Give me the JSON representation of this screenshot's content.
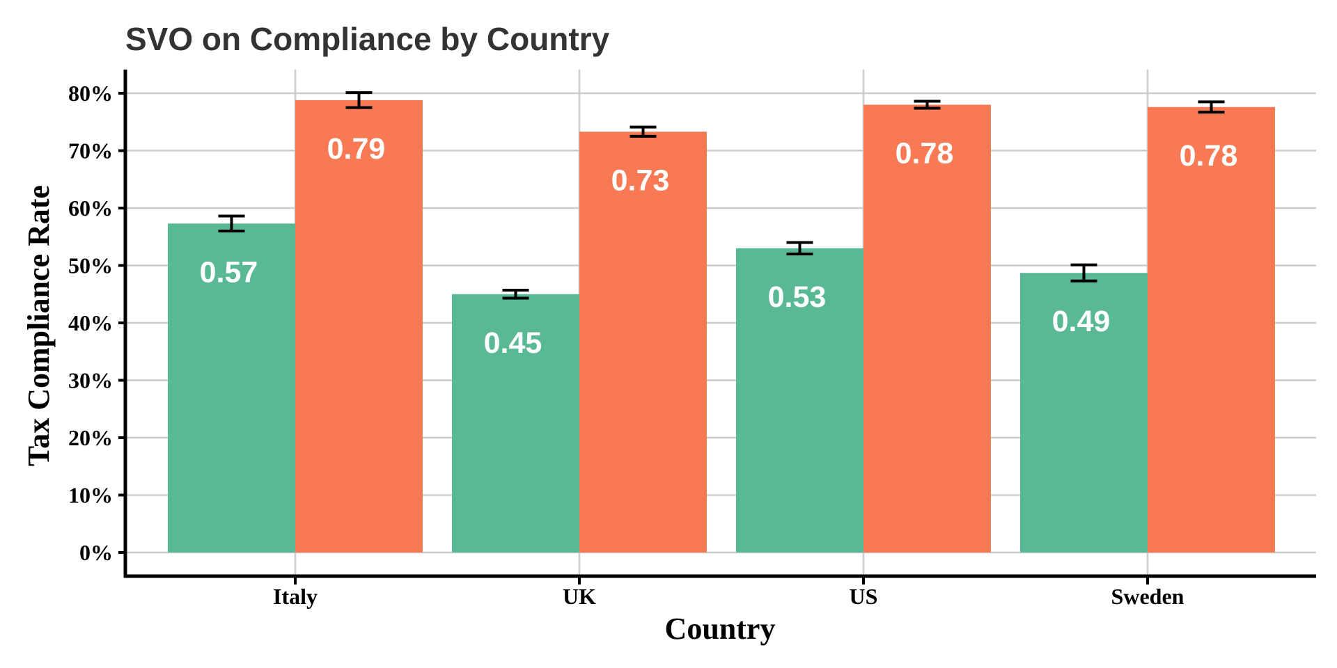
{
  "chart_data": {
    "type": "bar",
    "title": "SVO on Compliance by Country",
    "xlabel": "Country",
    "ylabel": "Tax Compliance Rate",
    "categories": [
      "Italy",
      "UK",
      "US",
      "Sweden"
    ],
    "ylim": [
      0,
      0.8
    ],
    "yticks": [
      0,
      0.1,
      0.2,
      0.3,
      0.4,
      0.5,
      0.6,
      0.7,
      0.8
    ],
    "ytick_labels": [
      "0%",
      "10%",
      "20%",
      "30%",
      "40%",
      "50%",
      "60%",
      "70%",
      "80%"
    ],
    "grid": true,
    "legend": "none",
    "series": [
      {
        "color": "#58b994",
        "values": [
          0.573,
          0.45,
          0.53,
          0.487
        ],
        "labels": [
          "0.57",
          "0.45",
          "0.53",
          "0.49"
        ],
        "error": [
          0.013,
          0.007,
          0.01,
          0.014
        ]
      },
      {
        "color": "#f77a54",
        "values": [
          0.788,
          0.733,
          0.78,
          0.776
        ],
        "labels": [
          "0.79",
          "0.73",
          "0.78",
          "0.78"
        ],
        "error": [
          0.013,
          0.008,
          0.006,
          0.009
        ]
      }
    ]
  }
}
